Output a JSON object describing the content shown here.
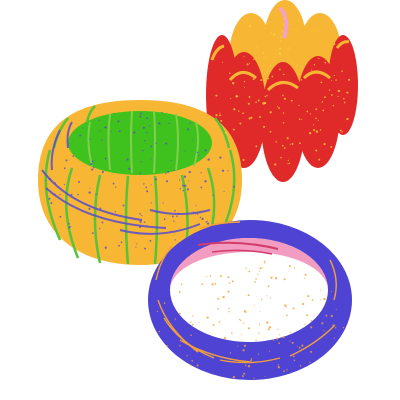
{
  "scene": {
    "background": "#ffffff",
    "objects": [
      {
        "name": "bangle-red-orange",
        "colors": {
          "outer": "#e02a2a",
          "inner": "#f7b734",
          "speckle": "#f4d23a",
          "highlight": "#f3a1c9"
        }
      },
      {
        "name": "bangle-orange-green",
        "colors": {
          "outer": "#f7b734",
          "inner": "#3fc21d",
          "stripe": "#58c23a",
          "swirl": "#5a4bd1"
        }
      },
      {
        "name": "bangle-blue-pink",
        "colors": {
          "outer": "#4f43d3",
          "inner": "#f39cc1",
          "speckle": "#f3a03a",
          "inner-line": "#d33c6a"
        }
      }
    ]
  }
}
